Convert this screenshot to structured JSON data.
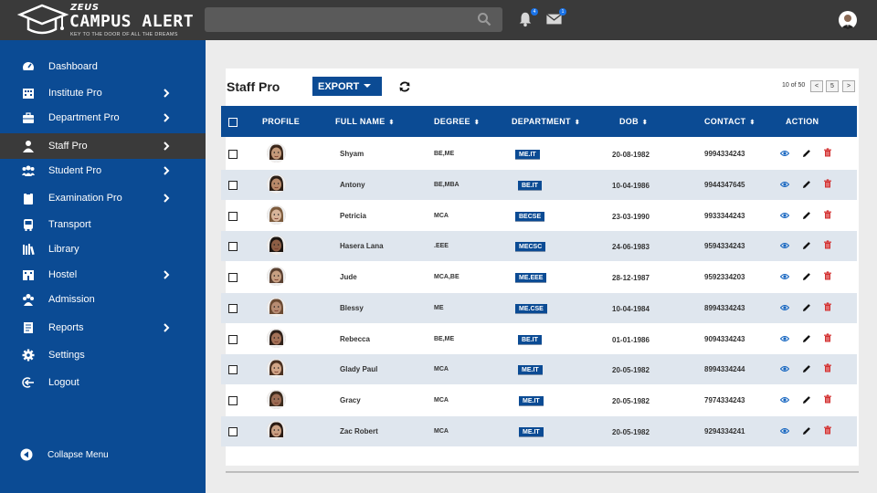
{
  "brand": {
    "small": "ZEUS",
    "title": "CAMPUS ALERT",
    "tagline": "KEY TO THE DOOR OF ALL THE DREAMS"
  },
  "topbar": {
    "search_placeholder": "",
    "notifications_count": "4",
    "messages_count": "1"
  },
  "sidebar": {
    "items": [
      {
        "label": "Dashboard",
        "icon": "dashboard-icon",
        "submenu": false
      },
      {
        "label": "Institute Pro",
        "icon": "building-icon",
        "submenu": true
      },
      {
        "label": "Department Pro",
        "icon": "briefcase-icon",
        "submenu": true
      },
      {
        "label": "Staff Pro",
        "icon": "user-icon",
        "submenu": true,
        "active": true
      },
      {
        "label": "Student Pro",
        "icon": "users-icon",
        "submenu": true
      },
      {
        "label": "Examination Pro",
        "icon": "clipboard-icon",
        "submenu": true
      },
      {
        "label": "Transport",
        "icon": "bus-icon",
        "submenu": false
      },
      {
        "label": "Library",
        "icon": "books-icon",
        "submenu": false
      },
      {
        "label": "Hostel",
        "icon": "hostel-icon",
        "submenu": true
      },
      {
        "label": "Admission",
        "icon": "group-icon",
        "submenu": false
      },
      {
        "label": "Reports",
        "icon": "reports-icon",
        "submenu": true
      },
      {
        "label": "Settings",
        "icon": "gear-icon",
        "submenu": false
      },
      {
        "label": "Logout",
        "icon": "logout-icon",
        "submenu": false
      }
    ],
    "collapse_label": "Collapse Menu"
  },
  "main": {
    "title": "Staff Pro",
    "export_label": "EXPORT",
    "pager_text": "10 of 50",
    "page_number": "5",
    "prev_label": "<",
    "next_label": ">"
  },
  "table": {
    "headers": {
      "profile": "PROFILE",
      "name": "FULL NAME",
      "degree": "DEGREE",
      "department": "DEPARTMENT",
      "dob": "DOB",
      "contact": "CONTACT",
      "action": "ACTION"
    },
    "sort_symbol": "⬍",
    "rows": [
      {
        "name": "Shyam",
        "degree": "BE,ME",
        "department": "ME.IT",
        "dob": "20-08-1982",
        "contact": "9994334243"
      },
      {
        "name": "Antony",
        "degree": "BE,MBA",
        "department": "BE.IT",
        "dob": "10-04-1986",
        "contact": "9944347645"
      },
      {
        "name": "Petricia",
        "degree": "MCA",
        "department": "BECSE",
        "dob": "23-03-1990",
        "contact": "9933344243"
      },
      {
        "name": "Hasera Lana",
        "degree": ".EEE",
        "department": "MECSC",
        "dob": "24-06-1983",
        "contact": "9594334243"
      },
      {
        "name": "Jude",
        "degree": "MCA,BE",
        "department": "ME.EEE",
        "dob": "28-12-1987",
        "contact": "9592334203"
      },
      {
        "name": "Blessy",
        "degree": "ME",
        "department": "ME.CSE",
        "dob": "10-04-1984",
        "contact": "8994334243"
      },
      {
        "name": "Rebecca",
        "degree": "BE,ME",
        "department": "BE.IT",
        "dob": "01-01-1986",
        "contact": "9094334243"
      },
      {
        "name": "Glady Paul",
        "degree": "MCA",
        "department": "ME.IT",
        "dob": "20-05-1982",
        "contact": "8994334244"
      },
      {
        "name": "Gracy",
        "degree": "MCA",
        "department": "ME.IT",
        "dob": "20-05-1982",
        "contact": "7974334243"
      },
      {
        "name": "Zac Robert",
        "degree": "MCA",
        "department": "ME.IT",
        "dob": "20-05-1982",
        "contact": "9294334241"
      }
    ]
  },
  "colors": {
    "brand_blue": "#0b4b94",
    "topbar": "#3a3a3a",
    "delete_red": "#d32f2f",
    "view_blue": "#1565c0"
  }
}
